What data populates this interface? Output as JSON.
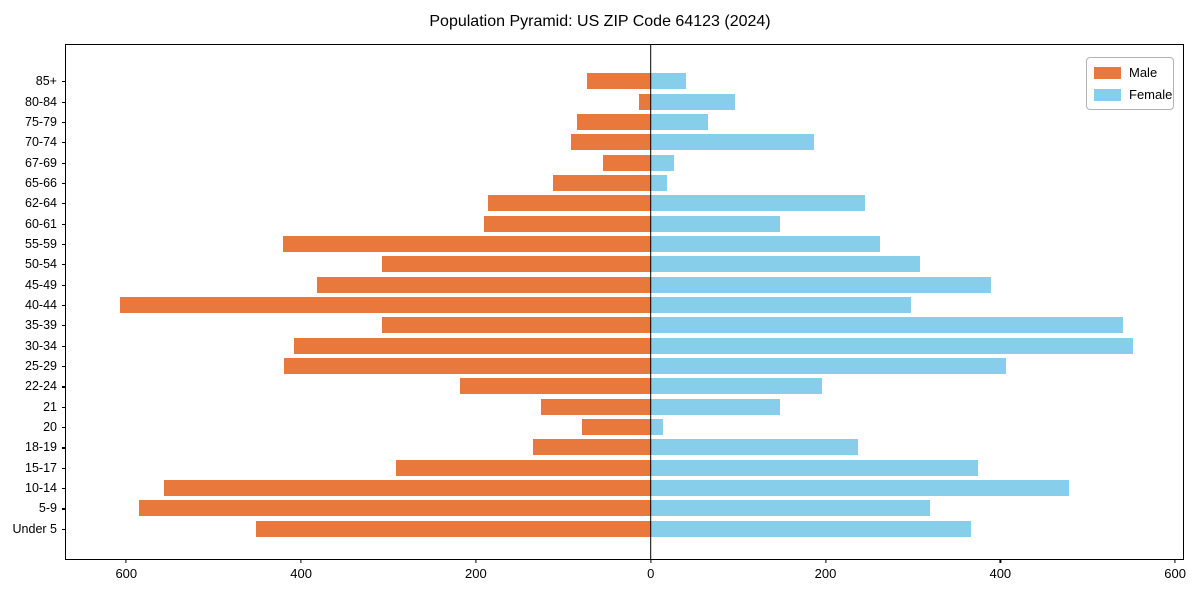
{
  "chart_data": {
    "type": "bar",
    "variant": "population-pyramid",
    "title": "Population Pyramid: US ZIP Code 64123 (2024)",
    "categories_top_to_bottom": [
      "85+",
      "80-84",
      "75-79",
      "70-74",
      "67-69",
      "65-66",
      "62-64",
      "60-61",
      "55-59",
      "50-54",
      "45-49",
      "40-44",
      "35-39",
      "30-34",
      "25-29",
      "22-24",
      "21",
      "20",
      "18-19",
      "15-17",
      "10-14",
      "5-9",
      "Under 5"
    ],
    "series": [
      {
        "name": "Male",
        "side": "left",
        "color": "#e8783c",
        "values": [
          73,
          13,
          84,
          91,
          55,
          112,
          186,
          191,
          421,
          308,
          382,
          607,
          308,
          408,
          420,
          218,
          125,
          79,
          135,
          292,
          557,
          585,
          452
        ]
      },
      {
        "name": "Female",
        "side": "right",
        "color": "#87ceeb",
        "values": [
          40,
          96,
          65,
          187,
          27,
          19,
          245,
          148,
          262,
          308,
          389,
          298,
          540,
          552,
          406,
          196,
          148,
          14,
          237,
          375,
          479,
          319,
          366
        ]
      }
    ],
    "xlim": [
      -669,
      609
    ],
    "x_ticks": [
      {
        "value": -600,
        "label": "600"
      },
      {
        "value": -400,
        "label": "400"
      },
      {
        "value": -200,
        "label": "200"
      },
      {
        "value": 0,
        "label": "0"
      },
      {
        "value": 200,
        "label": "200"
      },
      {
        "value": 400,
        "label": "400"
      },
      {
        "value": 600,
        "label": "600"
      }
    ],
    "zero_line": true,
    "grid": false,
    "legend_position": "upper-right",
    "axis_color": "#000000",
    "background_color": "#ffffff"
  }
}
